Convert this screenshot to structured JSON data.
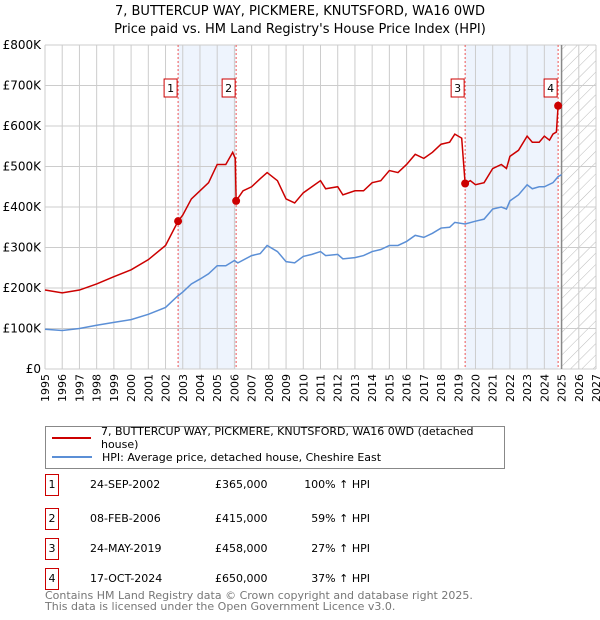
{
  "title": "7, BUTTERCUP WAY, PICKMERE, KNUTSFORD, WA16 0WD",
  "subtitle": "Price paid vs. HM Land Registry's House Price Index (HPI)",
  "colors": {
    "property": "#cc0000",
    "hpi": "#5b8fd6",
    "shade": "#eef4fd"
  },
  "legend": {
    "property": "7, BUTTERCUP WAY, PICKMERE, KNUTSFORD, WA16 0WD (detached house)",
    "hpi": "HPI: Average price, detached house, Cheshire East"
  },
  "sales": [
    {
      "n": "1",
      "date": "24-SEP-2002",
      "price": "£365,000",
      "hpi": "100% ↑ HPI",
      "x": 2002.73,
      "y": 365000
    },
    {
      "n": "2",
      "date": "08-FEB-2006",
      "price": "£415,000",
      "hpi": "59% ↑ HPI",
      "x": 2006.1,
      "y": 415000
    },
    {
      "n": "3",
      "date": "24-MAY-2019",
      "price": "£458,000",
      "hpi": "27% ↑ HPI",
      "x": 2019.4,
      "y": 458000
    },
    {
      "n": "4",
      "date": "17-OCT-2024",
      "price": "£650,000",
      "hpi": "37% ↑ HPI",
      "x": 2024.8,
      "y": 650000
    }
  ],
  "footer": {
    "line1": "Contains HM Land Registry data © Crown copyright and database right 2025.",
    "line2": "This data is licensed under the Open Government Licence v3.0."
  },
  "chart_data": {
    "type": "line",
    "xlim": [
      1995,
      2027
    ],
    "ylim": [
      0,
      800000
    ],
    "yticks": [
      0,
      100000,
      200000,
      300000,
      400000,
      500000,
      600000,
      700000,
      800000
    ],
    "ytick_labels": [
      "£0",
      "£100K",
      "£200K",
      "£300K",
      "£400K",
      "£500K",
      "£600K",
      "£700K",
      "£800K"
    ],
    "xticks": [
      1995,
      1996,
      1997,
      1998,
      1999,
      2000,
      2001,
      2002,
      2003,
      2004,
      2005,
      2006,
      2007,
      2008,
      2009,
      2010,
      2011,
      2012,
      2013,
      2014,
      2015,
      2016,
      2017,
      2018,
      2019,
      2020,
      2021,
      2022,
      2023,
      2024,
      2025,
      2026,
      2027
    ],
    "forecast_from": 2025,
    "series": [
      {
        "name": "property",
        "x": [
          1995,
          1996,
          1997,
          1998,
          1999,
          2000,
          2001,
          2002,
          2002.73,
          2003,
          2003.5,
          2004,
          2004.5,
          2005,
          2005.5,
          2005.9,
          2006.05,
          2006.1,
          2006.5,
          2007,
          2007.5,
          2007.9,
          2008.5,
          2009,
          2009.5,
          2010,
          2010.5,
          2011,
          2011.3,
          2012,
          2012.3,
          2013,
          2013.5,
          2014,
          2014.5,
          2015,
          2015.5,
          2016,
          2016.5,
          2017,
          2017.5,
          2018,
          2018.5,
          2018.8,
          2019.2,
          2019.4,
          2019.7,
          2020,
          2020.5,
          2021,
          2021.5,
          2021.8,
          2022,
          2022.5,
          2023,
          2023.3,
          2023.7,
          2024,
          2024.3,
          2024.5,
          2024.7,
          2024.8
        ],
        "values": [
          195000,
          188000,
          195000,
          210000,
          228000,
          245000,
          270000,
          305000,
          365000,
          380000,
          420000,
          440000,
          460000,
          505000,
          505000,
          535000,
          520000,
          415000,
          440000,
          450000,
          470000,
          485000,
          465000,
          420000,
          410000,
          435000,
          450000,
          465000,
          445000,
          450000,
          430000,
          440000,
          440000,
          460000,
          465000,
          490000,
          485000,
          505000,
          530000,
          520000,
          535000,
          555000,
          560000,
          580000,
          570000,
          458000,
          465000,
          455000,
          460000,
          495000,
          505000,
          495000,
          525000,
          540000,
          575000,
          560000,
          560000,
          575000,
          565000,
          580000,
          585000,
          650000
        ]
      },
      {
        "name": "hpi",
        "x": [
          1995,
          1996,
          1997,
          1998,
          1999,
          2000,
          2001,
          2002,
          2002.7,
          2003,
          2003.5,
          2004,
          2004.5,
          2005,
          2005.5,
          2006,
          2006.2,
          2007,
          2007.5,
          2007.9,
          2008.5,
          2009,
          2009.5,
          2010,
          2010.5,
          2011,
          2011.3,
          2012,
          2012.3,
          2013,
          2013.5,
          2014,
          2014.5,
          2015,
          2015.5,
          2016,
          2016.5,
          2017,
          2017.5,
          2018,
          2018.5,
          2018.8,
          2019.4,
          2020,
          2020.5,
          2021,
          2021.5,
          2021.8,
          2022,
          2022.5,
          2023,
          2023.3,
          2023.7,
          2024,
          2024.5,
          2024.8,
          2025
        ],
        "values": [
          98000,
          95000,
          100000,
          108000,
          115000,
          122000,
          135000,
          152000,
          180000,
          190000,
          210000,
          222000,
          235000,
          255000,
          255000,
          268000,
          262000,
          280000,
          285000,
          305000,
          290000,
          265000,
          262000,
          278000,
          283000,
          290000,
          280000,
          283000,
          272000,
          275000,
          280000,
          290000,
          295000,
          305000,
          305000,
          315000,
          330000,
          325000,
          335000,
          348000,
          350000,
          362000,
          358000,
          365000,
          370000,
          395000,
          400000,
          395000,
          415000,
          430000,
          455000,
          445000,
          450000,
          450000,
          460000,
          475000,
          480000
        ]
      }
    ]
  }
}
